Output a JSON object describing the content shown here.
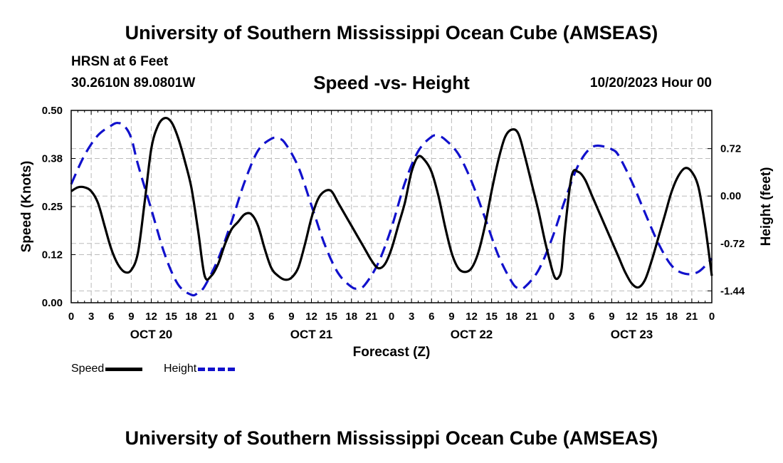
{
  "header": {
    "title": "University of Southern Mississippi Ocean Cube (AMSEAS)",
    "station": "HRSN at 6 Feet",
    "coordinates": "30.2610N  89.0801W",
    "subtitle": "Speed -vs- Height",
    "run_time": "10/20/2023 Hour 00"
  },
  "footer": {
    "title": "University of Southern Mississippi Ocean Cube (AMSEAS)"
  },
  "legend": {
    "speed_label": "Speed",
    "height_label": "Height"
  },
  "colors": {
    "speed": "#000000",
    "height": "#1111cc",
    "grid": "#bbbbbb"
  },
  "chart_data": {
    "type": "line",
    "title": "Speed -vs- Height",
    "xlabel": "Forecast (Z)",
    "ylabel_left": "Speed (Knots)",
    "ylabel_right": "Height (feet)",
    "x_range_hours": [
      0,
      96
    ],
    "x_ticks": [
      "0",
      "3",
      "6",
      "9",
      "12",
      "15",
      "18",
      "21",
      "0",
      "3",
      "6",
      "9",
      "12",
      "15",
      "18",
      "21",
      "0",
      "3",
      "6",
      "9",
      "12",
      "15",
      "18",
      "21",
      "0",
      "3",
      "6",
      "9",
      "12",
      "15",
      "18",
      "21",
      "0"
    ],
    "day_labels": [
      {
        "label": "OCT 20",
        "hour": 12
      },
      {
        "label": "OCT 21",
        "hour": 36
      },
      {
        "label": "OCT 22",
        "hour": 60
      },
      {
        "label": "OCT 23",
        "hour": 84
      }
    ],
    "y_left": {
      "range": [
        0,
        0.5
      ],
      "ticks": [
        "0.00",
        "0.12",
        "0.25",
        "0.38",
        "0.50"
      ]
    },
    "y_right": {
      "range": [
        -1.62,
        1.3
      ],
      "ticks": [
        "-1.44",
        "-0.72",
        "0.00",
        "0.72"
      ],
      "tick_values": [
        -1.44,
        -0.72,
        0.0,
        0.72
      ]
    },
    "grid": true,
    "series": [
      {
        "name": "Speed",
        "axis": "left",
        "style": "solid",
        "x": [
          0,
          1,
          2,
          3,
          4,
          5,
          6,
          7,
          8,
          9,
          10,
          11,
          12,
          13,
          14,
          15,
          16,
          17,
          18,
          19,
          20,
          21,
          22,
          23,
          24,
          25,
          26,
          27,
          28,
          29,
          30,
          31,
          32,
          33,
          34,
          35,
          36,
          37,
          38,
          39,
          40,
          41,
          42,
          43,
          44,
          45,
          46,
          47,
          48,
          49,
          50,
          51,
          52,
          53,
          54,
          55,
          56,
          57,
          58,
          59,
          60,
          61,
          62,
          63,
          64,
          65,
          66,
          67,
          68,
          69,
          70,
          71,
          72,
          72.5,
          73,
          73.5,
          74,
          75,
          76,
          77,
          78,
          79,
          80,
          81,
          82,
          83,
          84,
          85,
          86,
          87,
          88,
          89,
          90,
          91,
          92,
          93,
          94,
          95,
          96
        ],
        "values": [
          0.29,
          0.3,
          0.3,
          0.29,
          0.26,
          0.2,
          0.14,
          0.1,
          0.08,
          0.085,
          0.13,
          0.26,
          0.4,
          0.46,
          0.48,
          0.47,
          0.43,
          0.37,
          0.3,
          0.19,
          0.07,
          0.07,
          0.1,
          0.15,
          0.19,
          0.21,
          0.23,
          0.23,
          0.2,
          0.14,
          0.09,
          0.07,
          0.06,
          0.065,
          0.09,
          0.15,
          0.22,
          0.27,
          0.29,
          0.29,
          0.26,
          0.23,
          0.2,
          0.17,
          0.14,
          0.11,
          0.09,
          0.1,
          0.14,
          0.2,
          0.26,
          0.34,
          0.38,
          0.37,
          0.34,
          0.28,
          0.2,
          0.13,
          0.09,
          0.08,
          0.09,
          0.13,
          0.2,
          0.29,
          0.37,
          0.43,
          0.45,
          0.44,
          0.38,
          0.31,
          0.24,
          0.16,
          0.09,
          0.065,
          0.065,
          0.09,
          0.19,
          0.33,
          0.34,
          0.32,
          0.28,
          0.24,
          0.2,
          0.16,
          0.12,
          0.08,
          0.05,
          0.04,
          0.06,
          0.11,
          0.17,
          0.23,
          0.29,
          0.33,
          0.35,
          0.34,
          0.3,
          0.2,
          0.07
        ]
      },
      {
        "name": "Height",
        "axis": "right",
        "style": "dashed",
        "x": [
          0,
          2,
          4,
          6,
          7,
          8,
          9,
          10,
          12,
          14,
          16,
          18,
          19,
          20,
          22,
          24,
          26,
          28,
          30,
          31,
          32,
          34,
          36,
          38,
          40,
          42,
          43,
          44,
          46,
          48,
          50,
          52,
          54,
          55,
          56,
          58,
          60,
          62,
          64,
          66,
          67,
          68,
          70,
          72,
          74,
          76,
          78,
          80,
          81,
          82,
          84,
          86,
          88,
          90,
          92,
          94,
          96
        ],
        "values": [
          0.18,
          0.62,
          0.92,
          1.07,
          1.11,
          1.06,
          0.88,
          0.48,
          -0.2,
          -0.88,
          -1.34,
          -1.5,
          -1.47,
          -1.37,
          -0.96,
          -0.4,
          0.22,
          0.69,
          0.87,
          0.87,
          0.81,
          0.45,
          -0.14,
          -0.74,
          -1.17,
          -1.38,
          -1.4,
          -1.35,
          -1.02,
          -0.48,
          0.2,
          0.68,
          0.9,
          0.91,
          0.86,
          0.64,
          0.22,
          -0.33,
          -0.9,
          -1.3,
          -1.4,
          -1.38,
          -1.13,
          -0.66,
          -0.06,
          0.47,
          0.74,
          0.75,
          0.71,
          0.62,
          0.22,
          -0.26,
          -0.72,
          -1.06,
          -1.18,
          -1.15,
          -0.95
        ]
      }
    ]
  }
}
